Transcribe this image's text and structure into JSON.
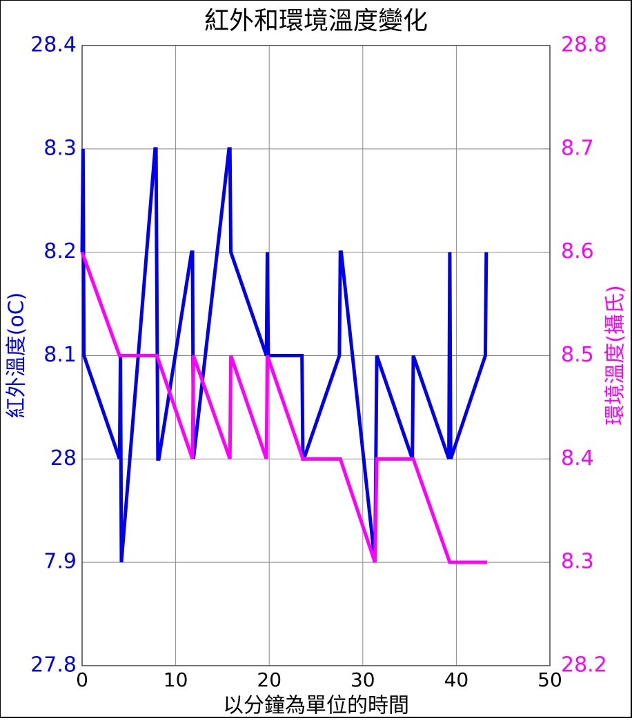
{
  "chart_data": {
    "type": "line",
    "title": "紅外和環境溫度變化",
    "x_label": "以分鐘為單位的時間",
    "y_label": "紅外溫度(oC)",
    "y2_label": "環境溫度(攝氏)",
    "xlim": [
      0,
      50
    ],
    "xticks": [
      0,
      10,
      20,
      30,
      40,
      50
    ],
    "ylim": [
      27.8,
      28.4
    ],
    "yticks": [
      27.8,
      {
        "value": 27.9,
        "label": "7.9"
      },
      28,
      {
        "value": 28.1,
        "label": "8.1"
      },
      {
        "value": 28.2,
        "label": "8.2"
      },
      {
        "value": 28.3,
        "label": "8.3"
      },
      28.4
    ],
    "y2lim": [
      28.2,
      28.8
    ],
    "y2ticks": [
      28.2,
      {
        "value": 28.3,
        "label": "8.3"
      },
      {
        "value": 28.4,
        "label": "8.4"
      },
      {
        "value": 28.5,
        "label": "8.5"
      },
      {
        "value": 28.6,
        "label": "8.6"
      },
      {
        "value": 28.7,
        "label": "8.7"
      },
      28.8
    ],
    "grid": true,
    "series": [
      {
        "name": "紅外溫度",
        "color": "#0000ee",
        "axis": "y",
        "x": [
          0,
          0.1,
          0.2,
          4.0,
          4.1,
          4.2,
          7.8,
          7.9,
          8.1,
          8.2,
          11.7,
          11.8,
          11.9,
          15.7,
          15.8,
          15.9,
          19.7,
          19.8,
          19.9,
          23.5,
          23.6,
          23.7,
          27.5,
          27.6,
          27.7,
          31.3,
          31.5,
          35.3,
          35.4,
          39.2,
          39.3,
          39.4,
          43.1,
          43.2
        ],
        "values": [
          28.2,
          28.3,
          28.1,
          28.0,
          28.1,
          27.9,
          28.3,
          28.3,
          28.0,
          28.0,
          28.2,
          28.2,
          28.0,
          28.3,
          28.3,
          28.2,
          28.1,
          28.2,
          28.1,
          28.1,
          28.0,
          28.0,
          28.1,
          28.2,
          28.2,
          27.9,
          28.1,
          28.0,
          28.1,
          28.0,
          28.2,
          28.0,
          28.1,
          28.2
        ]
      },
      {
        "name": "環境溫度",
        "color": "#ff00ff",
        "axis": "y2",
        "x": [
          0,
          4.0,
          8.0,
          11.8,
          11.9,
          15.8,
          15.9,
          19.7,
          19.8,
          23.6,
          27.6,
          31.3,
          31.5,
          35.4,
          39.3,
          43.3
        ],
        "values": [
          28.6,
          28.5,
          28.5,
          28.4,
          28.5,
          28.4,
          28.5,
          28.4,
          28.5,
          28.4,
          28.4,
          28.3,
          28.4,
          28.4,
          28.3,
          28.3
        ]
      }
    ]
  }
}
